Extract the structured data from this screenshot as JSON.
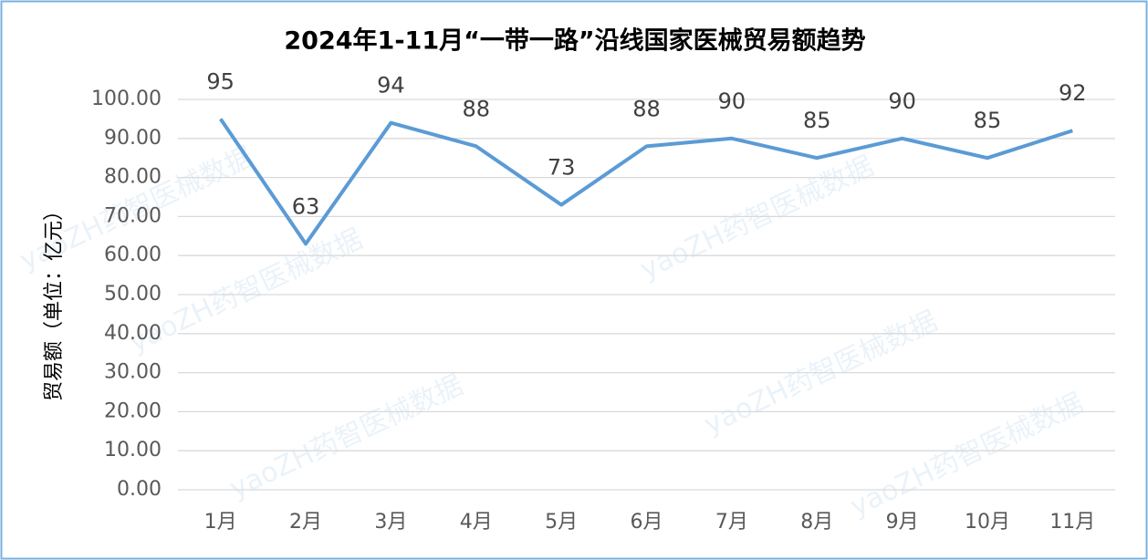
{
  "chart_data": {
    "type": "line",
    "title": "2024年1-11月“一带一路”沿线国家医械贸易额趋势",
    "y_label": "贸易额（单位：亿元）",
    "watermark": "yaoZH药智医械数据",
    "categories": [
      "1月",
      "2月",
      "3月",
      "4月",
      "5月",
      "6月",
      "7月",
      "8月",
      "9月",
      "10月",
      "11月"
    ],
    "series": [
      {
        "name": "贸易额",
        "color": "#5b9bd5",
        "values": [
          95,
          63,
          94,
          88,
          73,
          88,
          90,
          85,
          90,
          85,
          92
        ]
      }
    ],
    "ylim": [
      0,
      100
    ],
    "yticks": [
      {
        "value": 0,
        "label": "0.00"
      },
      {
        "value": 10,
        "label": "10.00"
      },
      {
        "value": 20,
        "label": "20.00"
      },
      {
        "value": 30,
        "label": "30.00"
      },
      {
        "value": 40,
        "label": "40.00"
      },
      {
        "value": 50,
        "label": "50.00"
      },
      {
        "value": 60,
        "label": "60.00"
      },
      {
        "value": 70,
        "label": "70.00"
      },
      {
        "value": 80,
        "label": "80.00"
      },
      {
        "value": 90,
        "label": "90.00"
      },
      {
        "value": 100,
        "label": "100.00"
      }
    ],
    "grid": true
  }
}
